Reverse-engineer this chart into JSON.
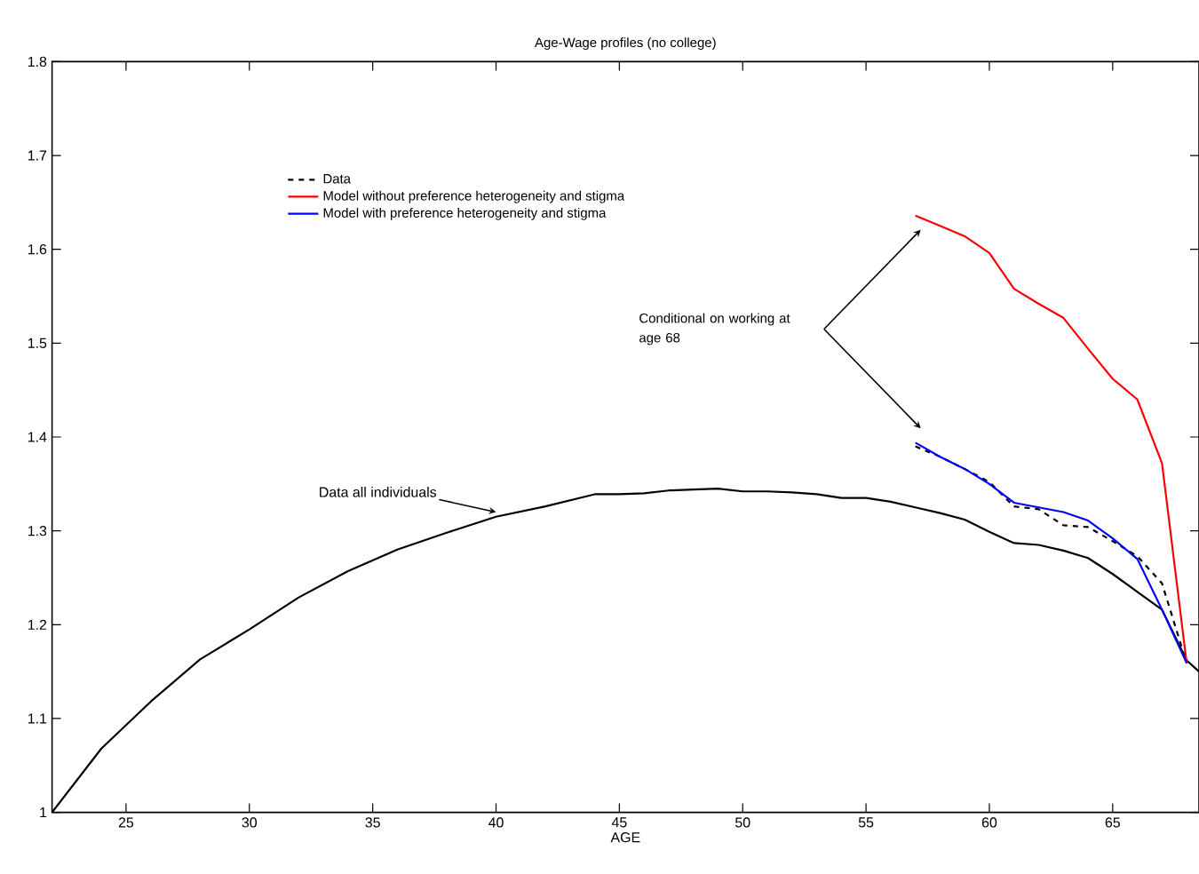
{
  "chart_data": {
    "type": "line",
    "title": "Age-Wage profiles (no college)",
    "xlabel": "AGE",
    "xlim": [
      22,
      68.5
    ],
    "ylim": [
      1,
      1.8
    ],
    "xticks": [
      25,
      30,
      35,
      40,
      45,
      50,
      55,
      60,
      65
    ],
    "yticks": [
      1,
      1.1,
      1.2,
      1.3,
      1.4,
      1.5,
      1.6,
      1.7,
      1.8
    ],
    "grid": false,
    "legend": "top left",
    "line_style": "solid",
    "marker": "none",
    "annotations": [
      {
        "text": "Data all individuals",
        "x": 40,
        "y": 1.32
      },
      "Conditional on working at age 68"
    ],
    "series": [
      {
        "color": "#000000",
        "x": [
          22,
          24,
          26,
          28,
          30,
          32,
          34,
          36,
          38,
          40,
          42,
          44,
          45,
          46,
          47,
          48,
          49,
          50,
          51,
          52,
          53,
          54,
          55,
          56,
          57,
          58,
          59,
          60,
          61,
          62,
          63,
          64,
          65,
          66,
          67,
          68,
          68.5
        ],
        "values": [
          1.0,
          1.068,
          1.118,
          1.163,
          1.195,
          1.229,
          1.257,
          1.28,
          1.298,
          1.315,
          1.326,
          1.339,
          1.339,
          1.34,
          1.343,
          1.344,
          1.345,
          1.342,
          1.342,
          1.341,
          1.339,
          1.335,
          1.335,
          1.331,
          1.325,
          1.319,
          1.312,
          1.299,
          1.287,
          1.285,
          1.279,
          1.271,
          1.254,
          1.235,
          1.216,
          1.162,
          1.15
        ]
      },
      {
        "name": "Data",
        "color": "#000000",
        "line_style": "dashed",
        "x": [
          57,
          58,
          59,
          60,
          61,
          62,
          63,
          64,
          65,
          66,
          67,
          68
        ],
        "values": [
          1.39,
          1.379,
          1.366,
          1.352,
          1.326,
          1.323,
          1.306,
          1.304,
          1.289,
          1.273,
          1.244,
          1.159
        ]
      },
      {
        "name": "Model without preference heterogeneity and stigma",
        "color": "#ff0000",
        "x": [
          57,
          58,
          59,
          60,
          61,
          62,
          63,
          64,
          65,
          66,
          67,
          68
        ],
        "values": [
          1.636,
          1.625,
          1.614,
          1.596,
          1.558,
          1.542,
          1.527,
          1.494,
          1.462,
          1.44,
          1.372,
          1.159
        ]
      },
      {
        "name": "Model with preference heterogeneity and stigma",
        "color": "#0000ff",
        "x": [
          57,
          58,
          59,
          60,
          61,
          62,
          63,
          64,
          65,
          66,
          67,
          68
        ],
        "values": [
          1.394,
          1.379,
          1.366,
          1.35,
          1.33,
          1.325,
          1.32,
          1.311,
          1.292,
          1.27,
          1.216,
          1.159
        ]
      }
    ]
  }
}
